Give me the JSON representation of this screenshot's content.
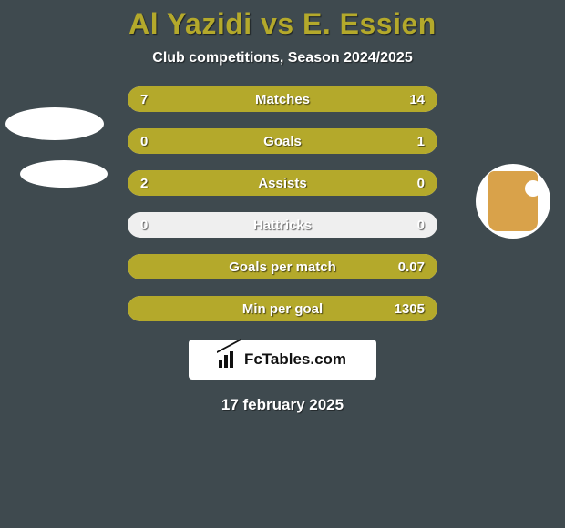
{
  "colors": {
    "background": "#3f4a4f",
    "title": "#b4a92b",
    "text_light": "#ffffff",
    "track": "#efefef",
    "fill": "#b4a92b",
    "avatar_bg": "#ffffff",
    "trophy": "#d9a24a"
  },
  "title": "Al Yazidi vs E. Essien",
  "subtitle": "Club competitions, Season 2024/2025",
  "logo_text": "FcTables.com",
  "date": "17 february 2025",
  "rows": [
    {
      "label": "Matches",
      "left": "7",
      "right": "14",
      "left_pct": 33,
      "right_pct": 67
    },
    {
      "label": "Goals",
      "left": "0",
      "right": "1",
      "left_pct": 0,
      "right_pct": 100
    },
    {
      "label": "Assists",
      "left": "2",
      "right": "0",
      "left_pct": 100,
      "right_pct": 0
    },
    {
      "label": "Hattricks",
      "left": "0",
      "right": "0",
      "left_pct": 0,
      "right_pct": 0
    },
    {
      "label": "Goals per match",
      "left": "",
      "right": "0.07",
      "left_pct": 0,
      "right_pct": 100
    },
    {
      "label": "Min per goal",
      "left": "",
      "right": "1305",
      "left_pct": 0,
      "right_pct": 100
    }
  ]
}
